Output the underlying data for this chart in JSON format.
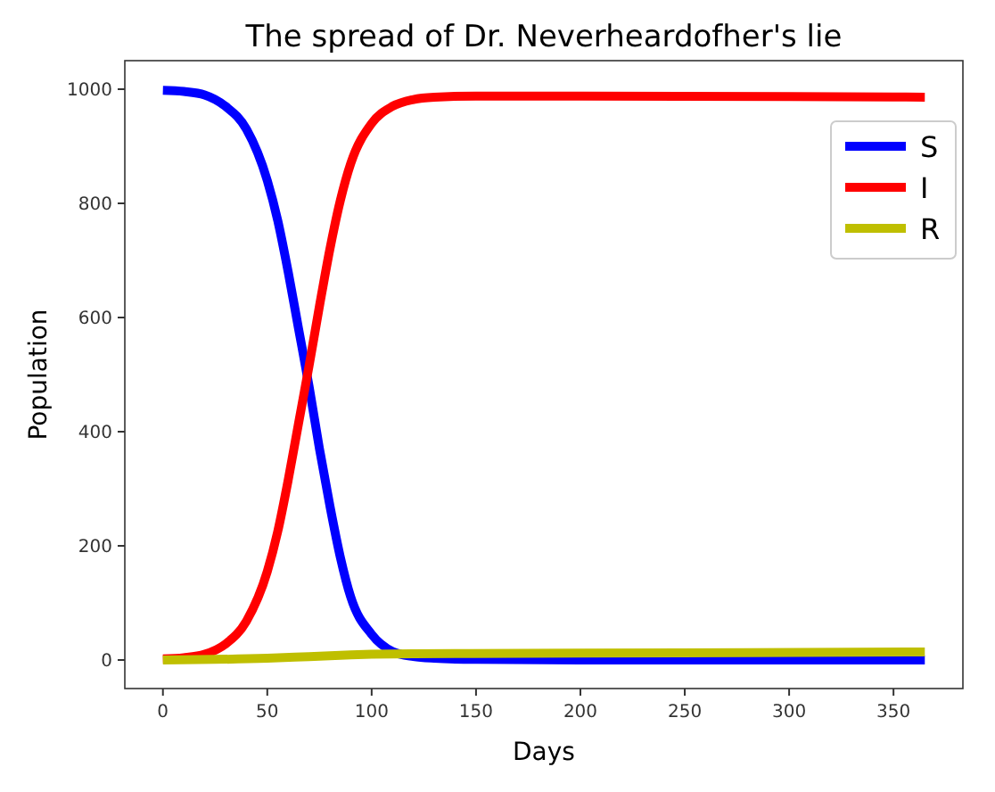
{
  "chart_data": {
    "type": "line",
    "title": "The spread of Dr. Neverheardofher's lie",
    "xlabel": "Days",
    "ylabel": "Population",
    "xlim": [
      -18.25,
      383.25
    ],
    "ylim": [
      -50,
      1050
    ],
    "xticks": [
      0,
      50,
      100,
      150,
      200,
      250,
      300,
      350
    ],
    "yticks": [
      0,
      200,
      400,
      600,
      800,
      1000
    ],
    "grid": false,
    "legend": "top right",
    "line_style": "solid",
    "series": [
      {
        "name": "S",
        "color": "#0000ff",
        "x": [
          0,
          10,
          20,
          30,
          40,
          50,
          55,
          60,
          65,
          70,
          75,
          80,
          85,
          90,
          100,
          110,
          120,
          130,
          150,
          200,
          365
        ],
        "values": [
          998,
          996,
          990,
          970,
          930,
          840,
          770,
          680,
          580,
          480,
          370,
          270,
          180,
          110,
          45,
          15,
          6,
          3,
          1,
          0,
          0
        ]
      },
      {
        "name": "I",
        "color": "#ff0000",
        "x": [
          0,
          10,
          20,
          30,
          40,
          50,
          55,
          60,
          65,
          70,
          75,
          80,
          85,
          90,
          100,
          110,
          120,
          130,
          150,
          200,
          300,
          365
        ],
        "values": [
          2,
          4,
          10,
          28,
          68,
          155,
          225,
          315,
          415,
          515,
          620,
          720,
          805,
          870,
          940,
          970,
          982,
          986,
          988,
          988,
          987,
          986
        ]
      },
      {
        "name": "R",
        "color": "#bfbf00",
        "x": [
          0,
          50,
          70,
          90,
          100,
          120,
          200,
          365
        ],
        "values": [
          0,
          3,
          6,
          9,
          10,
          11,
          12,
          14
        ]
      }
    ]
  }
}
